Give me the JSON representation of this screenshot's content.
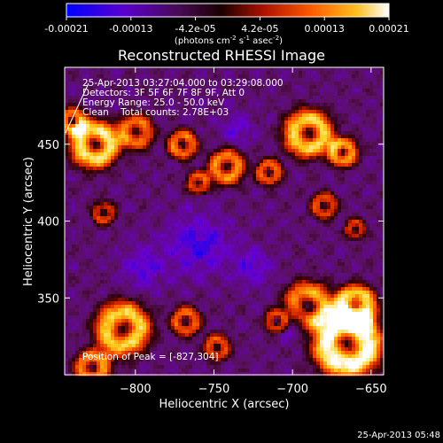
{
  "colorbar": {
    "tick_labels": [
      "-0.00021",
      "-0.00013",
      "-4.2e-05",
      "4.2e-05",
      "0.00013",
      "0.00021"
    ],
    "unit_label_main": "(photons cm",
    "unit_label_exp1": "-2",
    "unit_label_mid": " s",
    "unit_label_exp2": "-1",
    "unit_label_end": " asec",
    "unit_label_exp3": "-2",
    "unit_label_close": ")"
  },
  "annotations": {
    "line1": "25-Apr-2013 03:27:04.000 to 03:29:08.000",
    "line2": "Detectors: 3F 5F 6F 7F 8F 9F, Att 0",
    "line3": "Energy Range: 25.0 - 50.0 keV",
    "line4": "Clean    Total counts: 2.78E+03",
    "peak": "Position of Peak = [-827,304]"
  },
  "footer": {
    "timestamp": "25-Apr-2013 05:48"
  },
  "chart_data": {
    "type": "heatmap",
    "title": "Reconstructed RHESSI Image",
    "xlabel": "Heliocentric X (arcsec)",
    "ylabel": "Heliocentric Y (arcsec)",
    "xlim": [
      -845,
      -642
    ],
    "ylim": [
      300,
      500
    ],
    "x_ticks": [
      -800,
      -750,
      -700,
      -650
    ],
    "x_tick_labels": [
      "−800",
      "−750",
      "−700",
      "−650"
    ],
    "y_ticks": [
      350,
      400,
      450
    ],
    "y_tick_labels": [
      "350",
      "400",
      "450"
    ],
    "colorbar_range": [
      -0.00021,
      0.00021
    ],
    "colormap": [
      "#0000ff",
      "#6a00cc",
      "#5a1060",
      "#2a0000",
      "#c81e00",
      "#ff6400",
      "#ffd020",
      "#ffffff"
    ],
    "peak_position": [
      -827,
      304
    ],
    "hot_regions": [
      {
        "x": -665,
        "y": 320,
        "r": 22,
        "v": 1.0
      },
      {
        "x": -660,
        "y": 345,
        "r": 14,
        "v": 0.8
      },
      {
        "x": -690,
        "y": 345,
        "r": 16,
        "v": 0.7
      },
      {
        "x": -710,
        "y": 335,
        "r": 8,
        "v": 0.55
      },
      {
        "x": -826,
        "y": 450,
        "r": 16,
        "v": 0.85
      },
      {
        "x": -800,
        "y": 458,
        "r": 12,
        "v": 0.6
      },
      {
        "x": -840,
        "y": 465,
        "r": 9,
        "v": 0.6
      },
      {
        "x": -690,
        "y": 457,
        "r": 16,
        "v": 0.8
      },
      {
        "x": -668,
        "y": 445,
        "r": 10,
        "v": 0.7
      },
      {
        "x": -742,
        "y": 435,
        "r": 12,
        "v": 0.65
      },
      {
        "x": -715,
        "y": 432,
        "r": 9,
        "v": 0.55
      },
      {
        "x": -770,
        "y": 450,
        "r": 10,
        "v": 0.6
      },
      {
        "x": -760,
        "y": 425,
        "r": 8,
        "v": 0.5
      },
      {
        "x": -808,
        "y": 330,
        "r": 18,
        "v": 0.8
      },
      {
        "x": -827,
        "y": 305,
        "r": 12,
        "v": 0.65
      },
      {
        "x": -768,
        "y": 335,
        "r": 10,
        "v": 0.55
      },
      {
        "x": -748,
        "y": 318,
        "r": 9,
        "v": 0.5
      },
      {
        "x": -820,
        "y": 405,
        "r": 8,
        "v": 0.45
      },
      {
        "x": -680,
        "y": 410,
        "r": 9,
        "v": 0.5
      },
      {
        "x": -660,
        "y": 395,
        "r": 7,
        "v": 0.45
      }
    ],
    "cold_regions": [
      {
        "x": -760,
        "y": 385,
        "r": 20,
        "v": 0.6
      },
      {
        "x": -700,
        "y": 335,
        "r": 10,
        "v": 0.85
      },
      {
        "x": -725,
        "y": 370,
        "r": 12,
        "v": 0.5
      },
      {
        "x": -795,
        "y": 370,
        "r": 14,
        "v": 0.5
      },
      {
        "x": -735,
        "y": 460,
        "r": 10,
        "v": 0.45
      }
    ]
  }
}
